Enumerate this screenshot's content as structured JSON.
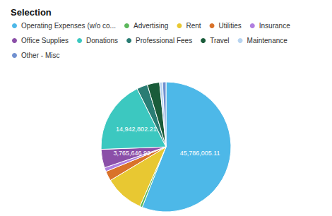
{
  "chart_data": {
    "type": "pie",
    "title": "Selection",
    "categories": [
      "Operating Expenses (w/o co...",
      "Advertising",
      "Rent",
      "Utilities",
      "Insurance",
      "Office Supplies",
      "Donations",
      "Professional Fees",
      "Travel",
      "Maintenance",
      "Other - Misc"
    ],
    "values": [
      45786005.11,
      500000,
      8000000,
      2000000,
      800000,
      3765646.92,
      14942802.21,
      2200000,
      2500000,
      600000,
      700000
    ],
    "value_labels": [
      "45,786,005.11",
      null,
      null,
      null,
      null,
      "3,765,646.92",
      "14,942,802.21",
      null,
      null,
      null,
      null
    ],
    "colors": [
      "#4db8e8",
      "#5cb85c",
      "#e8c832",
      "#d9722a",
      "#b07fe0",
      "#8b4fa8",
      "#3cc8c0",
      "#2a7d74",
      "#1a5c3a",
      "#b8d4f0",
      "#7090d0"
    ],
    "data_labels": true,
    "legend": "top"
  }
}
